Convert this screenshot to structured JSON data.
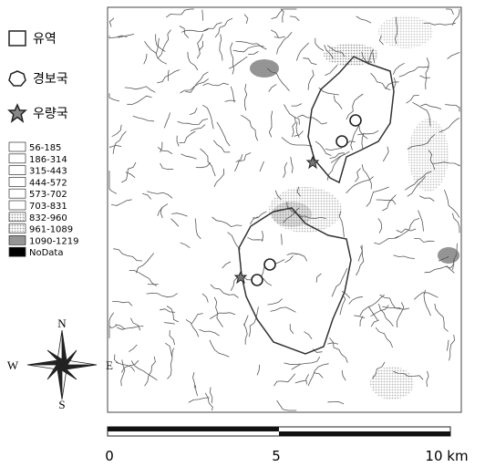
{
  "legend": {
    "symbols": [
      {
        "label": "유역"
      },
      {
        "label": "경보국"
      },
      {
        "label": "우량국"
      }
    ],
    "elevation_classes": [
      "56-185",
      "186-314",
      "315-443",
      "444-572",
      "573-702",
      "703-831",
      "832-960",
      "961-1089",
      "1090-1219",
      "NoData"
    ]
  },
  "compass": {
    "n": "N",
    "s": "S",
    "e": "E",
    "w": "W"
  },
  "scale_bar": {
    "labels": [
      "0",
      "5",
      "10 km"
    ]
  }
}
